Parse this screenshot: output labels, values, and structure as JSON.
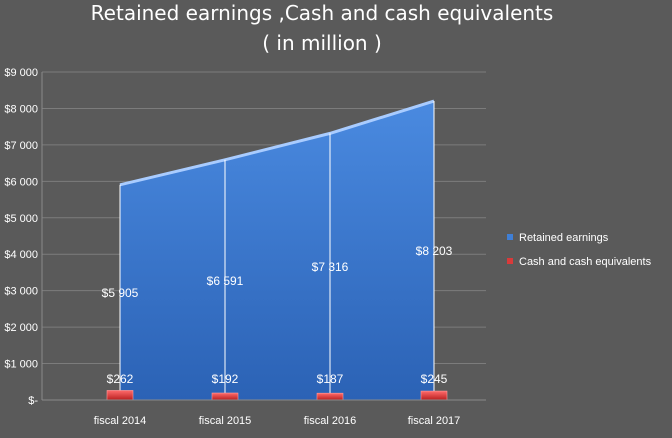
{
  "chart_data": {
    "type": "area",
    "title_line1": "Retained earnings ,Cash and cash equivalents",
    "title_line2": "( in million )",
    "categories": [
      "fiscal 2014",
      "fiscal 2015",
      "fiscal 2016",
      "fiscal 2017"
    ],
    "series": [
      {
        "name": "Retained earnings",
        "values": [
          5905,
          6591,
          7316,
          8203
        ],
        "labels": [
          "$5 905",
          "$6 591",
          "$7 316",
          "$8 203"
        ],
        "color": "#3f7fd6"
      },
      {
        "name": "Cash and cash equivalents",
        "values": [
          262,
          192,
          187,
          245
        ],
        "labels": [
          "$262",
          "$192",
          "$187",
          "$245"
        ],
        "color": "#d93a3a"
      }
    ],
    "yticks": [
      "$-",
      "$1 000",
      "$2 000",
      "$3 000",
      "$4 000",
      "$5 000",
      "$6 000",
      "$7 000",
      "$8 000",
      "$9 000"
    ],
    "ylim": [
      0,
      9000
    ],
    "grid": true,
    "legend_position": "right"
  }
}
